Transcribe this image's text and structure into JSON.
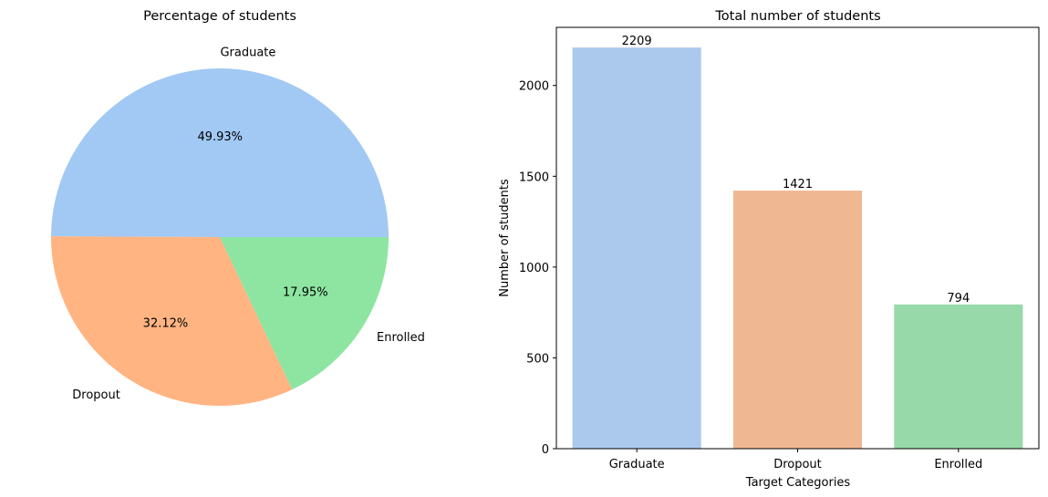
{
  "chart_data": [
    {
      "type": "pie",
      "title": "Percentage of students",
      "categories": [
        "Graduate",
        "Dropout",
        "Enrolled"
      ],
      "values": [
        49.93,
        32.12,
        17.95
      ],
      "value_labels": [
        "49.93%",
        "32.12%",
        "17.95%"
      ],
      "colors": [
        "#a1c9f4",
        "#ffb482",
        "#8de5a1"
      ]
    },
    {
      "type": "bar",
      "title": "Total number of students",
      "categories": [
        "Graduate",
        "Dropout",
        "Enrolled"
      ],
      "values": [
        2209,
        1421,
        794
      ],
      "xlabel": "Target Categories",
      "ylabel": "Number of students",
      "ylim": [
        0,
        2320
      ],
      "yticks": [
        0,
        500,
        1000,
        1500,
        2000
      ],
      "grid": false,
      "colors": [
        "#abc9ed",
        "#f0b892",
        "#98d9a9"
      ]
    }
  ]
}
